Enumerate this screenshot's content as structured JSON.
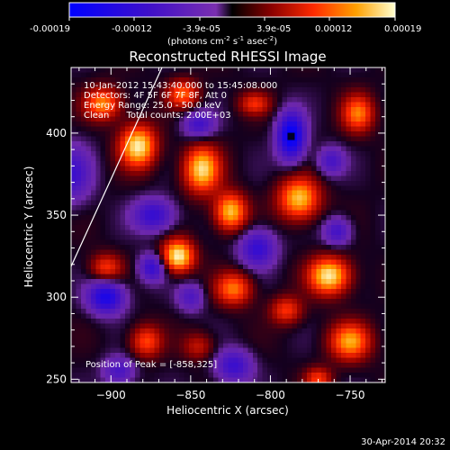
{
  "colorbar": {
    "ticks": [
      "-0.00019",
      "-0.00012",
      "-3.9e-05",
      "3.9e-05",
      "0.00012",
      "0.00019"
    ],
    "unit_main": "(photons cm",
    "unit_sup1": "-2",
    "unit_mid": " s",
    "unit_sup2": "-1",
    "unit_tail": " asec",
    "unit_sup3": "-2",
    "unit_close": ")"
  },
  "chart_data": {
    "type": "heatmap",
    "title": "Reconstructed RHESSI Image",
    "xlabel": "Heliocentric X (arcsec)",
    "ylabel": "Heliocentric Y (arcsec)",
    "xlim": [
      -925,
      -728
    ],
    "ylim": [
      248,
      440
    ],
    "x_ticks": [
      -900,
      -850,
      -800,
      -750
    ],
    "y_ticks": [
      250,
      300,
      350,
      400
    ],
    "x_tick_labels": [
      "−900",
      "−850",
      "−800",
      "−750"
    ],
    "y_tick_labels": [
      "250",
      "300",
      "350",
      "400"
    ],
    "color_range": [
      -0.00019,
      0.00019
    ],
    "annotations": [
      "10-Jan-2012 15:43:40.000 to 15:45:08.000",
      "Detectors: 4F 5F 6F 7F 8F, Att 0",
      "Energy Range: 25.0 - 50.0 keV",
      "Clean      Total counts: 2.00E+03"
    ],
    "peak_label": "Position of Peak = [-858,325]",
    "peak": [
      -858,
      325
    ],
    "blobs": [
      {
        "x": -858,
        "y": 325,
        "sx": 7,
        "sy": 7,
        "a": 1.0
      },
      {
        "x": -883,
        "y": 392,
        "sx": 8,
        "sy": 9,
        "a": 0.95
      },
      {
        "x": -843,
        "y": 378,
        "sx": 8,
        "sy": 10,
        "a": 0.9
      },
      {
        "x": -825,
        "y": 352,
        "sx": 7,
        "sy": 8,
        "a": 0.85
      },
      {
        "x": -782,
        "y": 360,
        "sx": 9,
        "sy": 9,
        "a": 0.85
      },
      {
        "x": -823,
        "y": 305,
        "sx": 8,
        "sy": 7,
        "a": 0.65
      },
      {
        "x": -763,
        "y": 313,
        "sx": 9,
        "sy": 8,
        "a": 0.95
      },
      {
        "x": -790,
        "y": 292,
        "sx": 7,
        "sy": 6,
        "a": 0.5
      },
      {
        "x": -903,
        "y": 318,
        "sx": 7,
        "sy": 6,
        "a": 0.5
      },
      {
        "x": -878,
        "y": 273,
        "sx": 7,
        "sy": 7,
        "a": 0.55
      },
      {
        "x": -750,
        "y": 273,
        "sx": 9,
        "sy": 8,
        "a": 0.75
      },
      {
        "x": -905,
        "y": 418,
        "sx": 8,
        "sy": 7,
        "a": 0.7
      },
      {
        "x": -855,
        "y": 424,
        "sx": 7,
        "sy": 6,
        "a": 0.6
      },
      {
        "x": -745,
        "y": 412,
        "sx": 7,
        "sy": 8,
        "a": 0.65
      },
      {
        "x": -810,
        "y": 418,
        "sx": 7,
        "sy": 5,
        "a": 0.45
      },
      {
        "x": -770,
        "y": 250,
        "sx": 6,
        "sy": 5,
        "a": 0.5
      },
      {
        "x": -845,
        "y": 270,
        "sx": 7,
        "sy": 6,
        "a": 0.35
      },
      {
        "x": -787,
        "y": 398,
        "sx": 6,
        "sy": 10,
        "a": -1.0
      },
      {
        "x": -903,
        "y": 300,
        "sx": 8,
        "sy": 7,
        "a": -0.8
      },
      {
        "x": -874,
        "y": 318,
        "sx": 6,
        "sy": 6,
        "a": -0.6
      },
      {
        "x": -873,
        "y": 350,
        "sx": 9,
        "sy": 7,
        "a": -0.6
      },
      {
        "x": -808,
        "y": 330,
        "sx": 8,
        "sy": 8,
        "a": -0.6
      },
      {
        "x": -845,
        "y": 405,
        "sx": 7,
        "sy": 6,
        "a": -0.5
      },
      {
        "x": -758,
        "y": 340,
        "sx": 6,
        "sy": 6,
        "a": -0.5
      },
      {
        "x": -762,
        "y": 383,
        "sx": 6,
        "sy": 6,
        "a": -0.45
      },
      {
        "x": -823,
        "y": 258,
        "sx": 8,
        "sy": 7,
        "a": -0.55
      },
      {
        "x": -895,
        "y": 255,
        "sx": 7,
        "sy": 6,
        "a": -0.45
      },
      {
        "x": -925,
        "y": 375,
        "sx": 9,
        "sy": 12,
        "a": -0.5
      },
      {
        "x": -850,
        "y": 300,
        "sx": 6,
        "sy": 6,
        "a": -0.4
      }
    ]
  },
  "timestamp": "30-Apr-2014 20:32"
}
